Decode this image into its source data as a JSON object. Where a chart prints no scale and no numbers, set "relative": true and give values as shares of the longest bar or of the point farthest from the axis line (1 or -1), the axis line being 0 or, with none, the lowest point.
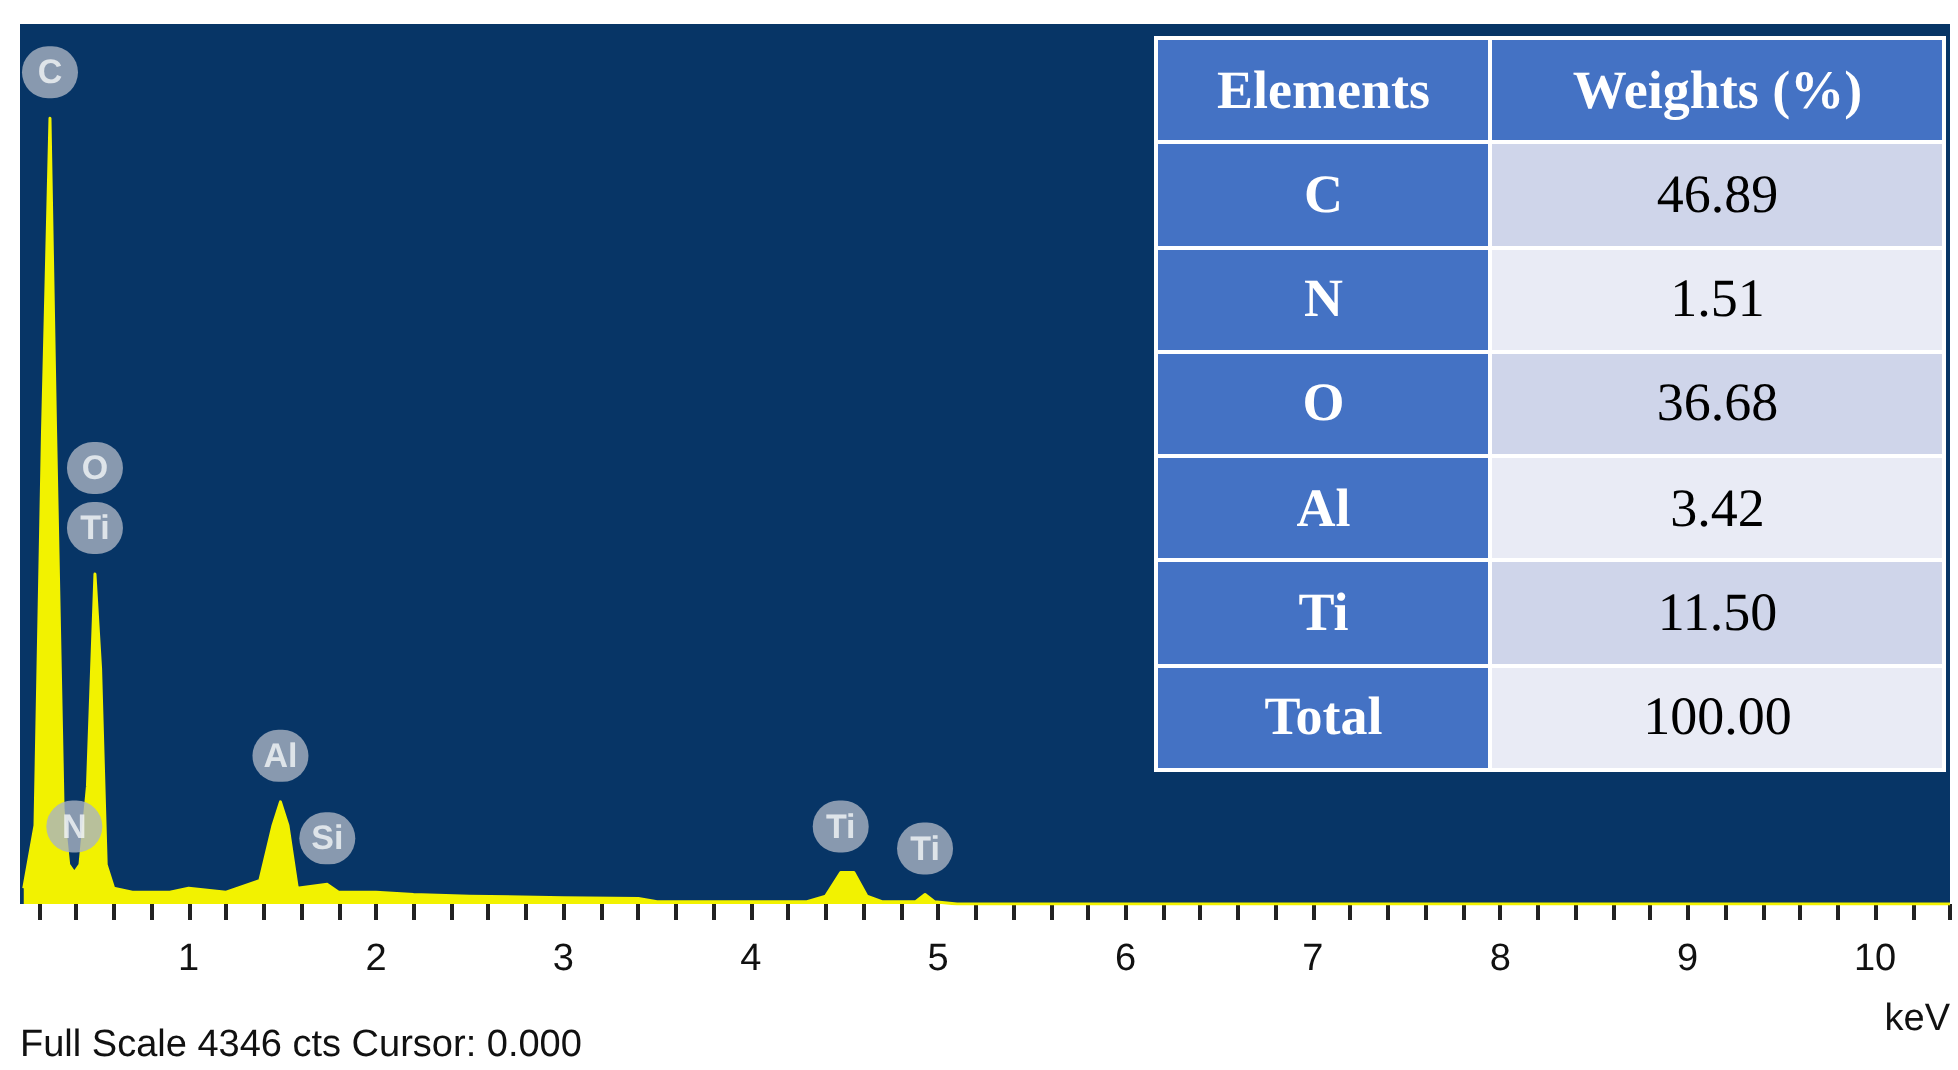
{
  "chart_data": [
    {
      "type": "area",
      "relative": true,
      "xlabel": "keV",
      "color": "#f2f200",
      "x": [
        0.12,
        0.18,
        0.22,
        0.26,
        0.29,
        0.33,
        0.36,
        0.39,
        0.42,
        0.46,
        0.5,
        0.53,
        0.56,
        0.6,
        0.7,
        0.9,
        1.0,
        1.2,
        1.38,
        1.45,
        1.49,
        1.53,
        1.58,
        1.74,
        1.8,
        2.0,
        2.2,
        2.5,
        3.0,
        3.4,
        3.5,
        4.3,
        4.4,
        4.48,
        4.55,
        4.62,
        4.7,
        4.88,
        4.93,
        4.98,
        5.1,
        10.4
      ],
      "values": [
        0.02,
        0.1,
        0.6,
        1.0,
        0.6,
        0.12,
        0.05,
        0.04,
        0.05,
        0.15,
        0.42,
        0.3,
        0.05,
        0.02,
        0.015,
        0.015,
        0.02,
        0.015,
        0.03,
        0.1,
        0.13,
        0.1,
        0.02,
        0.025,
        0.015,
        0.015,
        0.012,
        0.01,
        0.008,
        0.007,
        0.003,
        0.003,
        0.01,
        0.04,
        0.04,
        0.01,
        0.003,
        0.003,
        0.012,
        0.003,
        0,
        0
      ],
      "xlim": [
        0.1,
        10.4
      ],
      "xticks": [
        {
          "value": 0.2,
          "label": null
        },
        {
          "value": 0.4,
          "label": null
        },
        {
          "value": 0.6,
          "label": null
        },
        {
          "value": 0.8,
          "label": null
        },
        1,
        {
          "value": 1.2,
          "label": null
        },
        {
          "value": 1.4,
          "label": null
        },
        {
          "value": 1.6,
          "label": null
        },
        {
          "value": 1.8,
          "label": null
        },
        2,
        {
          "value": 2.2,
          "label": null
        },
        {
          "value": 2.4,
          "label": null
        },
        {
          "value": 2.6,
          "label": null
        },
        {
          "value": 2.8,
          "label": null
        },
        3,
        {
          "value": 3.2,
          "label": null
        },
        {
          "value": 3.4,
          "label": null
        },
        {
          "value": 3.6,
          "label": null
        },
        {
          "value": 3.8,
          "label": null
        },
        4,
        {
          "value": 4.2,
          "label": null
        },
        {
          "value": 4.4,
          "label": null
        },
        {
          "value": 4.6,
          "label": null
        },
        {
          "value": 4.8,
          "label": null
        },
        5,
        {
          "value": 5.2,
          "label": null
        },
        {
          "value": 5.4,
          "label": null
        },
        {
          "value": 5.6,
          "label": null
        },
        {
          "value": 5.8,
          "label": null
        },
        6,
        {
          "value": 6.2,
          "label": null
        },
        {
          "value": 6.4,
          "label": null
        },
        {
          "value": 6.6,
          "label": null
        },
        {
          "value": 6.8,
          "label": null
        },
        7,
        {
          "value": 7.2,
          "label": null
        },
        {
          "value": 7.4,
          "label": null
        },
        {
          "value": 7.6,
          "label": null
        },
        {
          "value": 7.8,
          "label": null
        },
        8,
        {
          "value": 8.2,
          "label": null
        },
        {
          "value": 8.4,
          "label": null
        },
        {
          "value": 8.6,
          "label": null
        },
        {
          "value": 8.8,
          "label": null
        },
        9,
        {
          "value": 9.2,
          "label": null
        },
        {
          "value": 9.4,
          "label": null
        },
        {
          "value": 9.6,
          "label": null
        },
        {
          "value": 9.8,
          "label": null
        },
        10,
        {
          "value": 10.2,
          "label": null
        },
        {
          "value": 10.4,
          "label": null
        }
      ],
      "grid": false,
      "annotations": [
        {
          "text": "C",
          "x": 0.26,
          "y": 1.0
        },
        {
          "text": "O",
          "x": 0.5,
          "y": 0.42
        },
        {
          "text": "Ti",
          "x": 0.5,
          "y": 0.42
        },
        {
          "text": "N",
          "x": 0.39,
          "y": 0.04
        },
        {
          "text": "Al",
          "x": 1.49,
          "y": 0.13
        },
        {
          "text": "Si",
          "x": 1.74,
          "y": 0.025
        },
        {
          "text": "Ti",
          "x": 4.48,
          "y": 0.04
        },
        {
          "text": "Ti",
          "x": 4.93,
          "y": 0.012
        },
        "Full Scale 4346 cts Cursor: 0.000"
      ]
    },
    {
      "type": "other",
      "xlabel": "Elements",
      "ylabel": "Weights (%)",
      "categories": [
        "C",
        "N",
        "O",
        "Al",
        "Ti",
        "Total"
      ],
      "values": [
        46.89,
        1.51,
        36.68,
        3.42,
        11.5,
        100
      ],
      "value_labels": [
        "46.89",
        "1.51",
        "36.68",
        "3.42",
        "11.50",
        "100.00"
      ]
    }
  ]
}
